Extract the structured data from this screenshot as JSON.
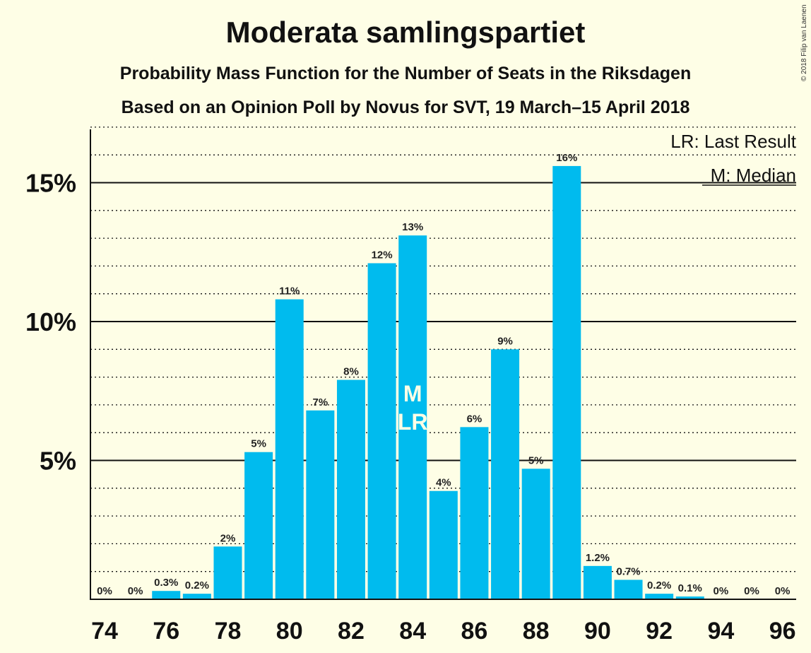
{
  "title": "Moderata samlingspartiet",
  "subtitle1": "Probability Mass Function for the Number of Seats in the Riksdagen",
  "subtitle2": "Based on an Opinion Poll by Novus for SVT, 19 March–15 April 2018",
  "copyright": "© 2018 Filip van Laenen",
  "colors": {
    "bar": "#00bbee",
    "background": "#fefee6",
    "text": "#111111"
  },
  "chart_data": {
    "type": "bar",
    "categories": [
      74,
      75,
      76,
      77,
      78,
      79,
      80,
      81,
      82,
      83,
      84,
      85,
      86,
      87,
      88,
      89,
      90,
      91,
      92,
      93,
      94,
      95,
      96
    ],
    "values": [
      0,
      0,
      0.3,
      0.2,
      1.9,
      5.3,
      10.8,
      6.8,
      7.9,
      12.1,
      13.1,
      3.9,
      6.2,
      9.0,
      4.7,
      15.6,
      1.2,
      0.7,
      0.2,
      0.1,
      0,
      0,
      0
    ],
    "labels": [
      "0%",
      "0%",
      "0.3%",
      "0.2%",
      "2%",
      "5%",
      "11%",
      "7%",
      "8%",
      "12%",
      "13%",
      "4%",
      "6%",
      "9%",
      "5%",
      "16%",
      "1.2%",
      "0.7%",
      "0.2%",
      "0.1%",
      "0%",
      "0%",
      "0%"
    ],
    "x_tick_labels": [
      "74",
      "76",
      "78",
      "80",
      "82",
      "84",
      "86",
      "88",
      "90",
      "92",
      "94",
      "96"
    ],
    "y_ticks": [
      5,
      10,
      15
    ],
    "y_tick_labels": [
      "5%",
      "10%",
      "15%"
    ],
    "y_minor_step": 1,
    "ylim": [
      0,
      17
    ],
    "median": 84,
    "last_result": 84,
    "median_marker": "M",
    "last_result_marker": "LR",
    "legend": [
      "LR: Last Result",
      "M: Median"
    ],
    "legend_position": "top-right",
    "grid": true
  }
}
